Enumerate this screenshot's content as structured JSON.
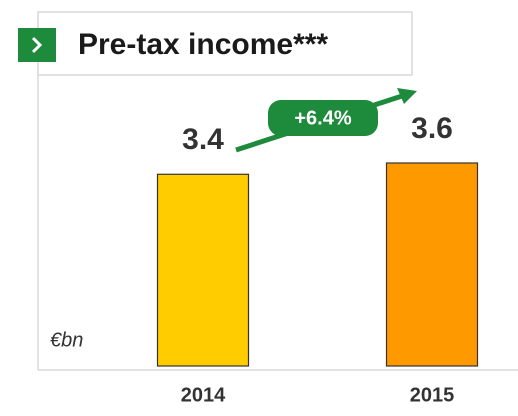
{
  "chart_data": {
    "type": "bar",
    "title": "Pre-tax income***",
    "unit_label": "€bn",
    "annotation": "+6.4%",
    "categories": [
      "2014",
      "2015"
    ],
    "values": [
      3.4,
      3.6
    ],
    "colors": [
      "#FFCC00",
      "#FF9900"
    ]
  }
}
